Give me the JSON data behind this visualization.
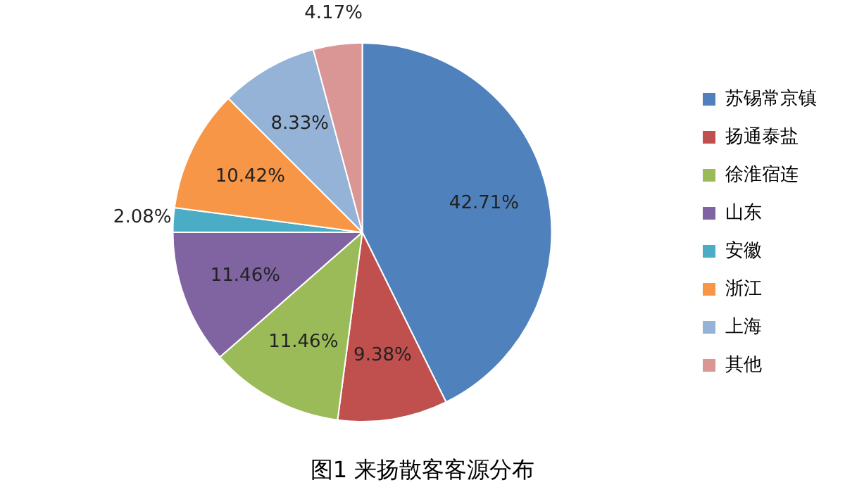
{
  "chart_data": {
    "type": "pie",
    "title": "图1 来扬散客客源分布",
    "categories": [
      "苏锡常京镇",
      "扬通泰盐",
      "徐淮宿连",
      "山东",
      "安徽",
      "浙江",
      "上海",
      "其他"
    ],
    "values": [
      42.71,
      9.38,
      11.46,
      11.46,
      2.08,
      10.42,
      8.33,
      4.17
    ],
    "value_labels": [
      "42.71%",
      "9.38%",
      "11.46%",
      "11.46%",
      "2.08%",
      "10.42%",
      "8.33%",
      "4.17%"
    ],
    "colors": [
      "#4f81bd",
      "#c0504d",
      "#9bbb59",
      "#8064a2",
      "#4bacc6",
      "#f79646",
      "#95b3d7",
      "#d99694"
    ],
    "legend": "right"
  }
}
